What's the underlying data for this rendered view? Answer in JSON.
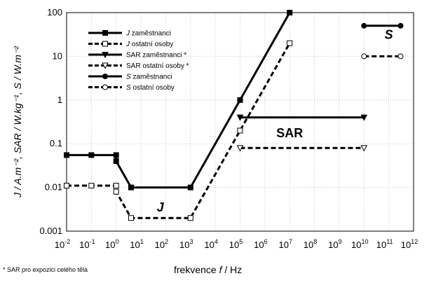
{
  "chart_data": {
    "type": "line",
    "xscale": "log",
    "yscale": "log",
    "xlim": [
      0.01,
      1000000000000.0
    ],
    "ylim": [
      0.001,
      100
    ],
    "grid": true,
    "legend_position": "top-left",
    "xlabel_parts": [
      "frekvence ",
      "f",
      " / Hz"
    ],
    "ylabel": "J / A.m⁻², SAR / W.kg⁻¹, S / W.m⁻²",
    "y_ticks": [
      {
        "value": 0.001,
        "label": "0.001"
      },
      {
        "value": 0.01,
        "label": "0.01"
      },
      {
        "value": 0.1,
        "label": "0.1"
      },
      {
        "value": 1,
        "label": "1"
      },
      {
        "value": 10,
        "label": "10"
      },
      {
        "value": 100,
        "label": "100"
      }
    ],
    "x_ticks": [
      {
        "value": 0.01,
        "base": "10",
        "exp": "-2"
      },
      {
        "value": 0.1,
        "base": "10",
        "exp": "-1"
      },
      {
        "value": 1,
        "base": "10",
        "exp": "0"
      },
      {
        "value": 10,
        "base": "10",
        "exp": "1"
      },
      {
        "value": 100,
        "base": "10",
        "exp": "2"
      },
      {
        "value": 1000,
        "base": "10",
        "exp": "3"
      },
      {
        "value": 10000,
        "base": "10",
        "exp": "4"
      },
      {
        "value": 100000,
        "base": "10",
        "exp": "5"
      },
      {
        "value": 1000000,
        "base": "10",
        "exp": "6"
      },
      {
        "value": 10000000,
        "base": "10",
        "exp": "7"
      },
      {
        "value": 100000000,
        "base": "10",
        "exp": "8"
      },
      {
        "value": 1000000000,
        "base": "10",
        "exp": "9"
      },
      {
        "value": 10000000000,
        "base": "10",
        "exp": "10"
      },
      {
        "value": 100000000000,
        "base": "10",
        "exp": "11"
      },
      {
        "value": 1000000000000,
        "base": "10",
        "exp": "12"
      }
    ],
    "series": [
      {
        "name": "J zaměstnanci",
        "name_italic": "J",
        "name_rest": " zaměstnanci",
        "style": "solid",
        "marker": "square-filled",
        "x": [
          0.01,
          0.1,
          1,
          1,
          4,
          1000,
          100000,
          10000000
        ],
        "y": [
          0.055,
          0.055,
          0.055,
          0.04,
          0.01,
          0.01,
          1,
          100
        ]
      },
      {
        "name": "J ostatní osoby",
        "name_italic": "J",
        "name_rest": " ostatní osoby",
        "style": "dashed",
        "marker": "square-open",
        "x": [
          0.01,
          0.1,
          1,
          1,
          4,
          1000,
          100000,
          10000000
        ],
        "y": [
          0.011,
          0.011,
          0.011,
          0.008,
          0.002,
          0.002,
          0.2,
          20
        ]
      },
      {
        "name": "SAR zaměstnanci *",
        "name_italic": "",
        "name_rest": "SAR zaměstnanci *",
        "style": "solid",
        "marker": "triangle-filled",
        "x": [
          100000,
          10000000000
        ],
        "y": [
          0.4,
          0.4
        ]
      },
      {
        "name": "SAR ostatní osoby *",
        "name_italic": "",
        "name_rest": "SAR ostatní osoby *",
        "style": "dashed",
        "marker": "triangle-open",
        "x": [
          100000,
          10000000000
        ],
        "y": [
          0.08,
          0.08
        ]
      },
      {
        "name": "S zaměstnanci",
        "name_italic": "S",
        "name_rest": " zaměstnanci",
        "style": "solid",
        "marker": "circle-filled",
        "x": [
          10000000000,
          300000000000
        ],
        "y": [
          50,
          50
        ]
      },
      {
        "name": "S ostatní osoby",
        "name_italic": "S",
        "name_rest": " ostatní osoby",
        "style": "dashed",
        "marker": "circle-open",
        "x": [
          10000000000,
          300000000000
        ],
        "y": [
          10,
          10
        ]
      }
    ],
    "annotations": [
      {
        "text": "J",
        "italic": true,
        "x": 60,
        "y": 0.0028
      },
      {
        "text": "SAR",
        "italic": false,
        "x": 10000000,
        "y": 0.14
      },
      {
        "text": "S",
        "italic": true,
        "x": 100000000000,
        "y": 25
      }
    ],
    "footnote": "* SAR pro expozici celého těla"
  }
}
